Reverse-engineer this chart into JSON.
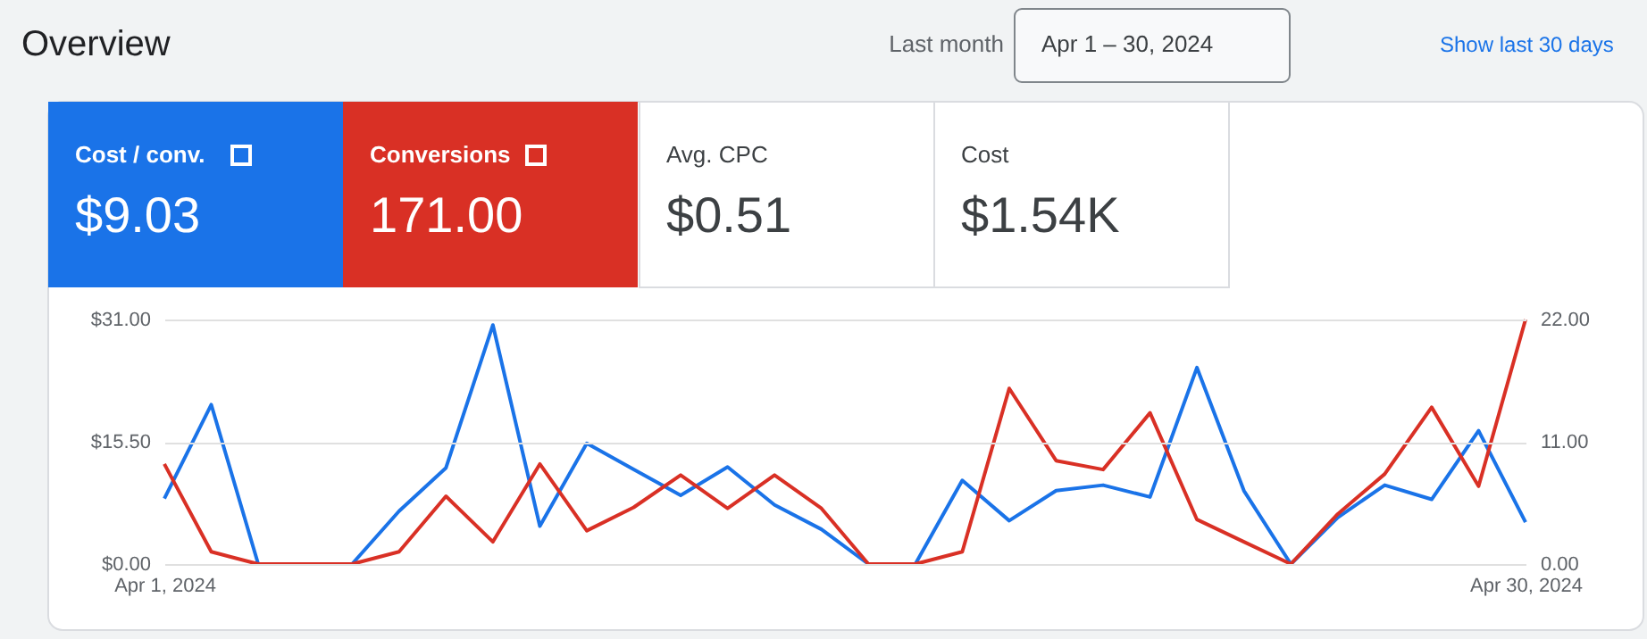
{
  "chart_data": {
    "type": "line",
    "title": "Overview",
    "x": [
      "2024-04-01",
      "2024-04-02",
      "2024-04-03",
      "2024-04-04",
      "2024-04-05",
      "2024-04-06",
      "2024-04-07",
      "2024-04-08",
      "2024-04-09",
      "2024-04-10",
      "2024-04-11",
      "2024-04-12",
      "2024-04-13",
      "2024-04-14",
      "2024-04-15",
      "2024-04-16",
      "2024-04-17",
      "2024-04-18",
      "2024-04-19",
      "2024-04-20",
      "2024-04-21",
      "2024-04-22",
      "2024-04-23",
      "2024-04-24",
      "2024-04-25",
      "2024-04-26",
      "2024-04-27",
      "2024-04-28",
      "2024-04-29",
      "2024-04-30"
    ],
    "series": [
      {
        "name": "Cost / conv.",
        "color": "#1a73e8",
        "values": [
          8.3,
          20.2,
          0,
          0,
          0,
          6.7,
          12.2,
          30.3,
          4.8,
          15.3,
          12.0,
          8.7,
          12.3,
          7.5,
          4.4,
          0,
          0,
          10.6,
          5.5,
          9.3,
          10.0,
          8.5,
          24.9,
          9.3,
          0,
          5.9,
          10.0,
          8.2,
          16.9,
          5.3
        ]
      },
      {
        "name": "Conversions",
        "color": "#d93025",
        "axis": "y2",
        "values": [
          9.0,
          1.1,
          0,
          0,
          0,
          1.1,
          6.1,
          2.0,
          9.0,
          3.0,
          5.1,
          8.0,
          5.0,
          8.0,
          5.0,
          0,
          0,
          1.1,
          15.8,
          9.3,
          8.5,
          13.6,
          4.0,
          2.0,
          0,
          4.5,
          8.1,
          14.1,
          7.0,
          22.0
        ]
      }
    ],
    "xlim": [
      "2024-04-01",
      "2024-04-30"
    ],
    "xticks": [
      {
        "value": "2024-04-01",
        "label": "Apr 1, 2024"
      },
      {
        "value": "2024-04-30",
        "label": "Apr 30, 2024"
      }
    ],
    "ylim": [
      0,
      31
    ],
    "yticks": [
      {
        "value": 0,
        "label": "$0.00"
      },
      {
        "value": 15.5,
        "label": "$15.50"
      },
      {
        "value": 31,
        "label": "$31.00"
      }
    ],
    "y2lim": [
      0,
      22
    ],
    "y2ticks": [
      {
        "value": 0,
        "label": "0.00"
      },
      {
        "value": 11,
        "label": "11.00"
      },
      {
        "value": 22,
        "label": "22.00"
      }
    ],
    "grid": "y",
    "legend": "top left",
    "marker": "none",
    "line_style": "solid",
    "annotations": [
      "Last month",
      "Apr 1 – 30, 2024",
      "Show last 30 days",
      "$9.03",
      "171.00",
      "Avg. CPC",
      "$0.51",
      "Cost",
      "$1.54K"
    ]
  }
}
